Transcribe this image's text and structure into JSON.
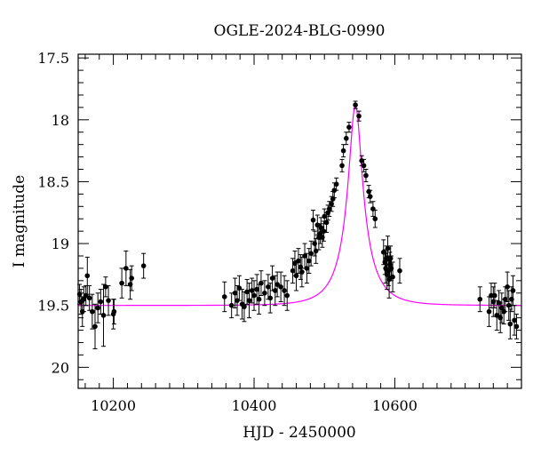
{
  "chart_data": {
    "type": "scatter",
    "title": "OGLE-2024-BLG-0990",
    "xlabel": "HJD - 2450000",
    "ylabel": "I magnitude",
    "xlim": [
      10150,
      10780
    ],
    "ylim": [
      20.17,
      17.47
    ],
    "y_inverted": true,
    "x_ticks": [
      10200,
      10400,
      10600
    ],
    "x_tick_labels": [
      "10200",
      "10400",
      "10600"
    ],
    "y_ticks": [
      17.5,
      18,
      18.5,
      19,
      19.5,
      20
    ],
    "y_tick_labels": [
      "17.5",
      "18",
      "18.5",
      "19",
      "19.5",
      "20"
    ],
    "grid": false,
    "model": {
      "name": "",
      "color": "#ff00ff",
      "t0": 10544,
      "peak_mag": 17.88,
      "baseline_mag": 19.5,
      "u0": 0.25,
      "tE": 40
    },
    "series": [
      {
        "name": "",
        "color": "#000000",
        "points": [
          [
            10152,
            19.41,
            0.08
          ],
          [
            10154,
            19.47,
            0.1
          ],
          [
            10156,
            19.55,
            0.12
          ],
          [
            10158,
            19.45,
            0.1
          ],
          [
            10161,
            19.42,
            0.08
          ],
          [
            10163,
            19.26,
            0.15
          ],
          [
            10166,
            19.44,
            0.1
          ],
          [
            10170,
            19.55,
            0.14
          ],
          [
            10174,
            19.67,
            0.18
          ],
          [
            10178,
            19.52,
            0.12
          ],
          [
            10182,
            19.47,
            0.1
          ],
          [
            10186,
            19.58,
            0.25
          ],
          [
            10189,
            19.35,
            0.08
          ],
          [
            10193,
            19.46,
            0.12
          ],
          [
            10200,
            19.57,
            0.12
          ],
          [
            10201,
            19.55,
            0.1
          ],
          [
            10212,
            19.32,
            0.12
          ],
          [
            10218,
            19.2,
            0.14
          ],
          [
            10224,
            19.33,
            0.12
          ],
          [
            10226,
            19.28,
            0.1
          ],
          [
            10243,
            19.18,
            0.1
          ],
          [
            10358,
            19.43,
            0.12
          ],
          [
            10368,
            19.5,
            0.1
          ],
          [
            10373,
            19.4,
            0.12
          ],
          [
            10376,
            19.46,
            0.12
          ],
          [
            10379,
            19.36,
            0.1
          ],
          [
            10383,
            19.49,
            0.12
          ],
          [
            10386,
            19.51,
            0.12
          ],
          [
            10390,
            19.39,
            0.1
          ],
          [
            10393,
            19.46,
            0.14
          ],
          [
            10397,
            19.38,
            0.1
          ],
          [
            10400,
            19.42,
            0.12
          ],
          [
            10404,
            19.37,
            0.12
          ],
          [
            10407,
            19.45,
            0.12
          ],
          [
            10410,
            19.32,
            0.1
          ],
          [
            10415,
            19.4,
            0.1
          ],
          [
            10420,
            19.35,
            0.1
          ],
          [
            10423,
            19.44,
            0.12
          ],
          [
            10426,
            19.28,
            0.1
          ],
          [
            10430,
            19.38,
            0.12
          ],
          [
            10433,
            19.33,
            0.1
          ],
          [
            10438,
            19.35,
            0.12
          ],
          [
            10443,
            19.38,
            0.12
          ],
          [
            10447,
            19.42,
            0.12
          ],
          [
            10455,
            19.22,
            0.1
          ],
          [
            10458,
            19.16,
            0.1
          ],
          [
            10460,
            19.26,
            0.12
          ],
          [
            10463,
            19.14,
            0.1
          ],
          [
            10466,
            19.19,
            0.1
          ],
          [
            10468,
            19.23,
            0.12
          ],
          [
            10472,
            19.1,
            0.1
          ],
          [
            10475,
            19.2,
            0.12
          ],
          [
            10478,
            19.14,
            0.1
          ],
          [
            10481,
            19.08,
            0.1
          ],
          [
            10484,
            18.81,
            0.08
          ],
          [
            10486,
            19.0,
            0.1
          ],
          [
            10488,
            19.06,
            0.1
          ],
          [
            10490,
            18.85,
            0.08
          ],
          [
            10492,
            18.95,
            0.1
          ],
          [
            10494,
            18.92,
            0.08
          ],
          [
            10495,
            18.87,
            0.08
          ],
          [
            10497,
            18.95,
            0.08
          ],
          [
            10499,
            18.9,
            0.08
          ],
          [
            10500,
            18.78,
            0.06
          ],
          [
            10503,
            18.83,
            0.08
          ],
          [
            10505,
            18.75,
            0.06
          ],
          [
            10507,
            18.72,
            0.06
          ],
          [
            10510,
            18.68,
            0.06
          ],
          [
            10512,
            18.64,
            0.06
          ],
          [
            10514,
            18.57,
            0.06
          ],
          [
            10517,
            18.52,
            0.05
          ],
          [
            10525,
            18.37,
            0.05
          ],
          [
            10527,
            18.25,
            0.05
          ],
          [
            10531,
            18.15,
            0.05
          ],
          [
            10535,
            18.06,
            0.04
          ],
          [
            10544,
            17.88,
            0.03
          ],
          [
            10549,
            17.97,
            0.04
          ],
          [
            10553,
            18.33,
            0.04
          ],
          [
            10556,
            18.37,
            0.05
          ],
          [
            10559,
            18.45,
            0.05
          ],
          [
            10563,
            18.58,
            0.05
          ],
          [
            10565,
            18.62,
            0.05
          ],
          [
            10569,
            18.72,
            0.06
          ],
          [
            10572,
            18.8,
            0.07
          ],
          [
            10584,
            19.07,
            0.1
          ],
          [
            10586,
            19.15,
            0.1
          ],
          [
            10587,
            19.2,
            0.12
          ],
          [
            10588,
            19.12,
            0.1
          ],
          [
            10589,
            19.25,
            0.12
          ],
          [
            10590,
            19.04,
            0.1
          ],
          [
            10591,
            19.22,
            0.12
          ],
          [
            10592,
            19.29,
            0.15
          ],
          [
            10593,
            19.17,
            0.1
          ],
          [
            10594,
            19.12,
            0.1
          ],
          [
            10595,
            19.2,
            0.1
          ],
          [
            10597,
            19.27,
            0.12
          ],
          [
            10607,
            19.22,
            0.1
          ],
          [
            10721,
            19.45,
            0.1
          ],
          [
            10734,
            19.55,
            0.12
          ],
          [
            10737,
            19.42,
            0.1
          ],
          [
            10740,
            19.47,
            0.12
          ],
          [
            10742,
            19.42,
            0.1
          ],
          [
            10745,
            19.58,
            0.12
          ],
          [
            10748,
            19.48,
            0.1
          ],
          [
            10750,
            19.6,
            0.12
          ],
          [
            10752,
            19.52,
            0.12
          ],
          [
            10755,
            19.55,
            0.1
          ],
          [
            10757,
            19.45,
            0.1
          ],
          [
            10760,
            19.35,
            0.12
          ],
          [
            10762,
            19.5,
            0.12
          ],
          [
            10764,
            19.65,
            0.12
          ],
          [
            10766,
            19.45,
            0.1
          ],
          [
            10768,
            19.38,
            0.12
          ],
          [
            10770,
            19.62,
            0.12
          ],
          [
            10773,
            19.67,
            0.1
          ]
        ]
      }
    ]
  }
}
